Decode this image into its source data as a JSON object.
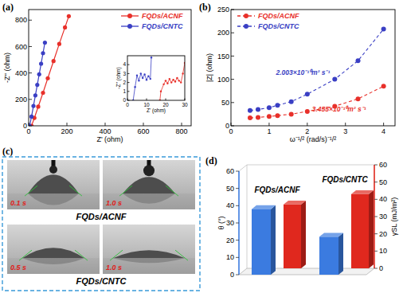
{
  "chart_data": [
    {
      "type": "line",
      "title": "(a)",
      "x_label": "Z' (ohm)",
      "y_label": "-Z'' (ohm)",
      "xlim": [
        0,
        850
      ],
      "ylim": [
        0,
        880
      ],
      "xticks": [
        0,
        200,
        400,
        600,
        800
      ],
      "yticks": [
        0,
        200,
        400,
        600,
        800
      ],
      "legend": "upper right",
      "marker": "circle",
      "line_style": "solid",
      "series": [
        {
          "name": "FQDs/ACNF",
          "color": "#e8302a",
          "x": [
            15,
            30,
            50,
            75,
            100,
            130,
            160,
            190,
            210
          ],
          "values": [
            0,
            60,
            145,
            250,
            360,
            490,
            620,
            745,
            830
          ]
        },
        {
          "name": "FQDs/CNTC",
          "color": "#3a3fc4",
          "x": [
            5,
            15,
            25,
            35,
            45,
            55,
            65,
            75,
            85
          ],
          "values": [
            0,
            70,
            150,
            230,
            310,
            390,
            470,
            550,
            630
          ]
        }
      ],
      "inset": {
        "type": "line",
        "x_label": "Z' (ohm)",
        "y_label": "-Z'' (ohm)",
        "xlim": [
          0,
          30
        ],
        "ylim": [
          0,
          5
        ],
        "xticks": [
          0,
          10,
          20,
          30
        ],
        "yticks": [
          0,
          1,
          2,
          3,
          4
        ],
        "marker": "circle",
        "line_style": "solid",
        "series": [
          {
            "color": "#3a3fc4",
            "x": [
              3,
              4,
              5,
              6,
              7,
              8,
              9,
              10,
              11,
              12,
              12.5
            ],
            "values": [
              0,
              1.5,
              2.8,
              2.2,
              3.0,
              2.5,
              2.9,
              2.3,
              2.7,
              2.4,
              4.8
            ]
          },
          {
            "color": "#e8302a",
            "x": [
              17,
              17.5,
              19,
              20,
              21,
              22,
              23,
              24,
              25,
              26,
              27,
              28,
              29,
              30
            ],
            "values": [
              0,
              1.0,
              1.8,
              2.2,
              1.9,
              2.4,
              2.0,
              2.3,
              2.1,
              2.5,
              2.2,
              2.0,
              3.0,
              4.2
            ]
          }
        ]
      }
    },
    {
      "type": "line",
      "title": "(b)",
      "x_label": "ω⁻¹/² (rad/s)⁻¹/²",
      "y_label": "|Z| (ohm)",
      "xlim": [
        0,
        4.3
      ],
      "ylim": [
        0,
        250
      ],
      "xticks": [
        0,
        1,
        2,
        3,
        4
      ],
      "yticks": [
        0,
        50,
        100,
        150,
        200,
        250
      ],
      "legend": "upper left",
      "marker": "circle",
      "line_style": "dashed",
      "x": [
        0.5,
        0.71,
        1.0,
        1.22,
        1.58,
        2.0,
        2.72,
        3.33,
        4.0
      ],
      "series": [
        {
          "name": "FQDs/ACNF",
          "color": "#e8302a",
          "values": [
            17,
            18,
            20,
            22,
            25,
            31,
            42,
            58,
            85
          ],
          "annotation": "3.455×10⁻¹⁰m² s⁻¹"
        },
        {
          "name": "FQDs/CNTC",
          "color": "#3a3fc4",
          "values": [
            33,
            35,
            39,
            44,
            52,
            68,
            100,
            140,
            208
          ],
          "annotation": "2.003×10⁻¹⁰m² s⁻¹"
        }
      ]
    },
    {
      "type": "bar",
      "title": "(d)",
      "categories": [
        "FQDs/ACNF",
        "FQDs/CNTC"
      ],
      "y_label": "θ (°)",
      "y2_label": "γSL (mJ/m²)",
      "ylim": [
        0,
        60
      ],
      "yticks": [
        0,
        10,
        20,
        30,
        40,
        50,
        60
      ],
      "y2lim": [
        0,
        60
      ],
      "y2ticks": [
        0,
        10,
        20,
        30,
        40,
        50,
        60
      ],
      "series": [
        {
          "color": "#3b7be0",
          "values": [
            38,
            22
          ]
        },
        {
          "color": "#e0281e",
          "values": [
            37,
            43
          ],
          "axis": "y2"
        }
      ]
    }
  ],
  "photos": {
    "title": "(c)",
    "rows": [
      {
        "label": "FQDs/ACNF",
        "times": [
          "0.1 s",
          "1.0 s"
        ]
      },
      {
        "label": "FQDs/CNTC",
        "times": [
          "0.5 s",
          "1.0 s"
        ]
      }
    ]
  }
}
